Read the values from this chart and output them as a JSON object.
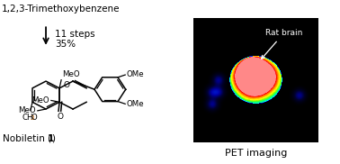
{
  "title_text": "1,2,3-Trimethoxybenzene",
  "arrow_label1": "11 steps",
  "arrow_label2": "35%",
  "pet_label": "PET imaging",
  "rat_brain_label": "Rat brain",
  "nobiletin_label": "Nobiletin (",
  "nobiletin_bold": "1",
  "nobiletin_end": ")",
  "bg_color": "#ffffff",
  "ch3_color": "#e07000"
}
